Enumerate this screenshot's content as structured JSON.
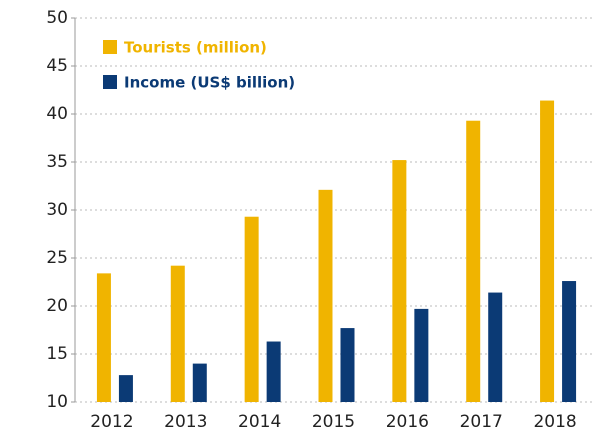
{
  "chart_data": {
    "type": "bar",
    "categories": [
      "2012",
      "2013",
      "2014",
      "2015",
      "2016",
      "2017",
      "2018"
    ],
    "series": [
      {
        "name": "Tourists (million)",
        "color": "#f0b400",
        "values": [
          23.4,
          24.2,
          29.3,
          32.1,
          35.2,
          39.3,
          41.4
        ]
      },
      {
        "name": "Income (US$ billion)",
        "color": "#0b3a75",
        "values": [
          12.8,
          14.0,
          16.3,
          17.7,
          19.7,
          21.4,
          22.6
        ]
      }
    ],
    "ylim": [
      10,
      50
    ],
    "yticks": [
      10,
      15,
      20,
      25,
      30,
      35,
      40,
      45,
      50
    ],
    "grid": true
  }
}
